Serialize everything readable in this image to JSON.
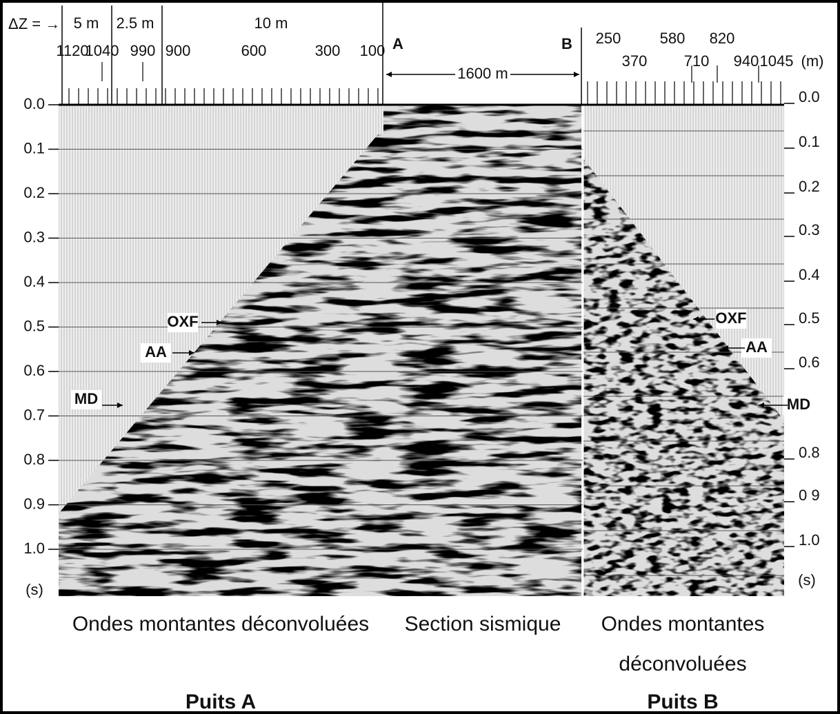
{
  "header": {
    "delta_z": "ΔZ = →",
    "intervals": [
      "5 m",
      "2.5 m",
      "10 m"
    ],
    "well_a_depths": [
      "1120",
      "1040",
      "990",
      "900",
      "600",
      "300",
      "100"
    ],
    "well_b_depths": [
      "250",
      "370",
      "580",
      "710",
      "820",
      "940",
      "1045"
    ],
    "unit": "(m)",
    "marker_a": "A",
    "marker_b": "B",
    "distance": "1600 m"
  },
  "left_axis": {
    "ticks": [
      "0.0",
      "0.1",
      "0.2",
      "0.3",
      "0.4",
      "0.5",
      "0.6",
      "0.7",
      "0.8",
      "0.9",
      "1.0"
    ],
    "unit": "(s)"
  },
  "right_axis": {
    "ticks": [
      "0.0",
      "0.1",
      "0.2",
      "0.3",
      "0.4",
      "0.5",
      "0.6",
      "0.8",
      "0 9",
      "1.0"
    ],
    "unit": "(s)"
  },
  "horizons_a": [
    "OXF",
    "AA",
    "MD"
  ],
  "horizons_b": [
    "OXF",
    "AA",
    "MD"
  ],
  "footer": {
    "panel_a": "Ondes montantes déconvoluées",
    "section": "Section sismique",
    "panel_b_line1": "Ondes montantes",
    "panel_b_line2": "déconvoluées",
    "well_a": "Puits A",
    "well_b": "Puits B"
  }
}
